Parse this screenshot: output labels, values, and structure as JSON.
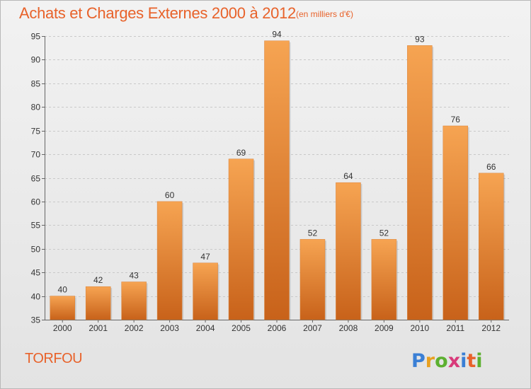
{
  "header": {
    "title": "Achats et Charges Externes 2000 à 2012",
    "subtitle": "(en milliers d'€)"
  },
  "footer": {
    "city": "TORFOU",
    "logo_text": "Proxiti"
  },
  "colors": {
    "accent": "#e8622a",
    "bar_light": "#f6a452",
    "bar_dark": "#c8621a"
  },
  "chart_data": {
    "type": "bar",
    "title": "Achats et Charges Externes 2000 à 2012",
    "subtitle": "(en milliers d'€)",
    "categories": [
      "2000",
      "2001",
      "2002",
      "2003",
      "2004",
      "2005",
      "2006",
      "2007",
      "2008",
      "2009",
      "2010",
      "2011",
      "2012"
    ],
    "values": [
      40,
      42,
      43,
      60,
      47,
      69,
      94,
      52,
      64,
      52,
      93,
      76,
      66
    ],
    "ylim": [
      35,
      95
    ],
    "yticks": [
      35,
      40,
      45,
      50,
      55,
      60,
      65,
      70,
      75,
      80,
      85,
      90,
      95
    ],
    "grid": true,
    "legend": "none"
  }
}
